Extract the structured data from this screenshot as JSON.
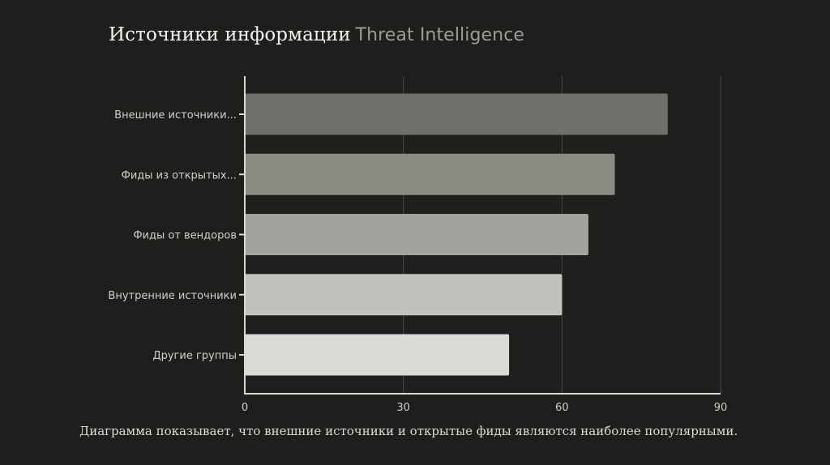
{
  "slide": {
    "title_main": "Источники информации",
    "title_accent": "Threat Intelligence",
    "caption": "Диаграмма показывает, что внешние источники и открытые фиды являются наиболее популярными."
  },
  "chart_data": {
    "type": "bar",
    "orientation": "horizontal",
    "categories": [
      "Внешние источники...",
      "Фиды из открытых...",
      "Фиды от вендоров",
      "Внутренние источники",
      "Другие группы"
    ],
    "values": [
      80,
      70,
      65,
      60,
      50
    ],
    "xlim": [
      0,
      90
    ],
    "x_ticks": [
      "0",
      "30",
      "60",
      "90"
    ],
    "grid": true,
    "colors": [
      "#706f69",
      "#8b8b84",
      "#a3a39d",
      "#c2c2bd",
      "#dadbd6"
    ],
    "axis_color": "#d9d9d2",
    "grid_color": "#4a4a47",
    "label_color": "#d0d0ca"
  }
}
